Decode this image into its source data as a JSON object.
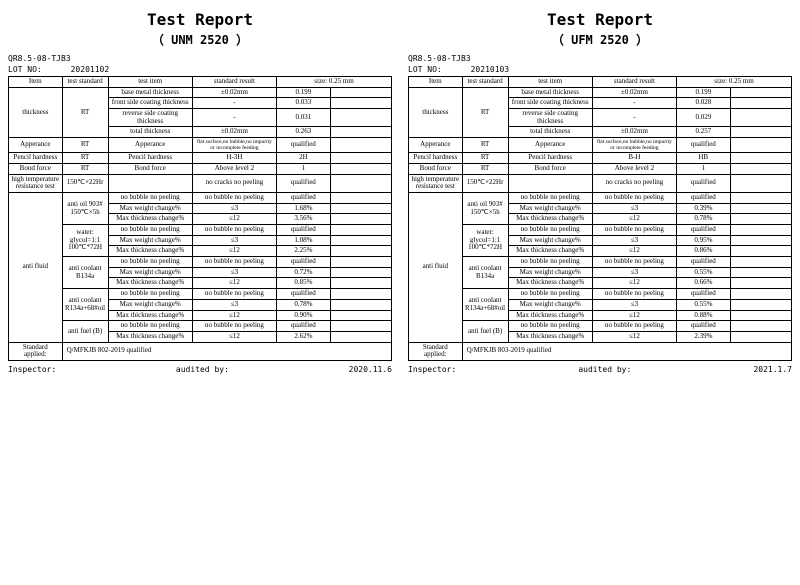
{
  "reports": [
    {
      "title": "Test Report",
      "subtitle": "（ UNM 2520 ）",
      "doc_no": "QR8.5-08-TJB3",
      "lot_label": "LOT NO:",
      "lot_no": "20201102",
      "head": {
        "item": "Item",
        "std": "test standard",
        "titem": "test item",
        "sres": "standard result",
        "size": "size: 0.25 mm"
      },
      "thickness": {
        "label": "thickness",
        "std": "RT",
        "rows": [
          {
            "ti": "base metal thickness",
            "sr": "±0.02mm",
            "v": "0.199"
          },
          {
            "ti": "front side coating thickness",
            "sr": "-",
            "v": "0.033"
          },
          {
            "ti": "reverse side coating thickness",
            "sr": "-",
            "v": "0.031"
          },
          {
            "ti": "total thickness",
            "sr": "±0.02mm",
            "v": "0.263"
          }
        ]
      },
      "appearance": {
        "label": "Apperance",
        "std": "RT",
        "ti": "Apperance",
        "sr": "flat surface,no bubble,no impurity or incomplete feeding",
        "v": "qualified"
      },
      "pencil": {
        "label": "Pencil hardness",
        "std": "RT",
        "ti": "Pencil hardness",
        "sr": "H-3H",
        "v": "2H"
      },
      "bond": {
        "label": "Bond force",
        "std": "RT",
        "ti": "Bond force",
        "sr": "Above level 2",
        "v": "1"
      },
      "hightemp": {
        "label": "high temperature resistance test",
        "std": "150℃×22Hr",
        "sr": "no cracks  no peeling",
        "v": "qualified"
      },
      "antifluid": {
        "label": "anti fluid",
        "groups": [
          {
            "std": "anti oil 903# 150℃×5h",
            "rows": [
              {
                "ti": "no bubble  no peeling",
                "sr": "no bubble  no peeling",
                "v": "qualified"
              },
              {
                "ti": "Max weight change%",
                "sr": "≤3",
                "v": "1.68%"
              },
              {
                "ti": "Max thickness change%",
                "sr": "≤12",
                "v": "3.56%"
              }
            ]
          },
          {
            "std": "water: glycol=1:1 100℃*72H",
            "rows": [
              {
                "ti": "no bubble  no peeling",
                "sr": "no bubble  no peeling",
                "v": "qualified"
              },
              {
                "ti": "Max weight change%",
                "sr": "≤3",
                "v": "1.08%"
              },
              {
                "ti": "Max thickness change%",
                "sr": "≤12",
                "v": "2.25%"
              }
            ]
          },
          {
            "std": "anti coolant R134a",
            "rows": [
              {
                "ti": "no bubble  no peeling",
                "sr": "no bubble  no peeling",
                "v": "qualified"
              },
              {
                "ti": "Max weight change%",
                "sr": "≤3",
                "v": "0.72%"
              },
              {
                "ti": "Max thickness change%",
                "sr": "≤12",
                "v": "0.85%"
              }
            ]
          },
          {
            "std": "anti coolant R134a+68#oil",
            "rows": [
              {
                "ti": "no bubble  no peeling",
                "sr": "no bubble  no peeling",
                "v": "qualified"
              },
              {
                "ti": "Max weight change%",
                "sr": "≤3",
                "v": "0.78%"
              },
              {
                "ti": "Max thickness change%",
                "sr": "≤12",
                "v": "0.90%"
              }
            ]
          },
          {
            "std": "anti fuel (B)",
            "rows": [
              {
                "ti": "no bubble  no peeling",
                "sr": "no bubble  no peeling",
                "v": "qualified"
              },
              {
                "ti": "Max thickness change%",
                "sr": "≤12",
                "v": "2.62%"
              }
            ]
          }
        ]
      },
      "std_applied": {
        "label": "Standard applied:",
        "v": "Q/MFKJB 802-2019  qualified"
      },
      "footer": {
        "inspector": "Inspector:",
        "audited": "audited by:",
        "date": "2020.11.6"
      }
    },
    {
      "title": "Test Report",
      "subtitle": "（ UFM 2520 ）",
      "doc_no": "QR8.5-08-TJB3",
      "lot_label": "LOT NO:",
      "lot_no": "20210103",
      "head": {
        "item": "Item",
        "std": "test standard",
        "titem": "test item",
        "sres": "standard result",
        "size": "size: 0.25 mm"
      },
      "thickness": {
        "label": "thickness",
        "std": "RT",
        "rows": [
          {
            "ti": "base metal thickness",
            "sr": "±0.02mm",
            "v": "0.199"
          },
          {
            "ti": "front side coating thickness",
            "sr": "-",
            "v": "0.028"
          },
          {
            "ti": "reverse side coating thickness",
            "sr": "-",
            "v": "0.029"
          },
          {
            "ti": "total thickness",
            "sr": "±0.02mm",
            "v": "0.257"
          }
        ]
      },
      "appearance": {
        "label": "Apperance",
        "std": "RT",
        "ti": "Apperance",
        "sr": "flat surface,no bubble,no impurity or incomplete feeding",
        "v": "qualified"
      },
      "pencil": {
        "label": "Pencil hardness",
        "std": "RT",
        "ti": "Pencil hardness",
        "sr": "B-H",
        "v": "HB"
      },
      "bond": {
        "label": "Bond force",
        "std": "RT",
        "ti": "Bond force",
        "sr": "Above level 2",
        "v": "1"
      },
      "hightemp": {
        "label": "high temperature resistance test",
        "std": "150℃×22Hr",
        "sr": "no cracks  no peeling",
        "v": "qualified"
      },
      "antifluid": {
        "label": "anti fluid",
        "groups": [
          {
            "std": "anti oil 903# 150℃×5h",
            "rows": [
              {
                "ti": "no bubble  no peeling",
                "sr": "no bubble  no peeling",
                "v": "qualified"
              },
              {
                "ti": "Max weight change%",
                "sr": "≤3",
                "v": "0.39%"
              },
              {
                "ti": "Max thickness change%",
                "sr": "≤12",
                "v": "0.78%"
              }
            ]
          },
          {
            "std": "water: glycol=1:1 100℃*72H",
            "rows": [
              {
                "ti": "no bubble  no peeling",
                "sr": "no bubble  no peeling",
                "v": "qualified"
              },
              {
                "ti": "Max weight change%",
                "sr": "≤3",
                "v": "0.95%"
              },
              {
                "ti": "Max thickness change%",
                "sr": "≤12",
                "v": "0.86%"
              }
            ]
          },
          {
            "std": "anti coolant R134a",
            "rows": [
              {
                "ti": "no bubble  no peeling",
                "sr": "no bubble  no peeling",
                "v": "qualified"
              },
              {
                "ti": "Max weight change%",
                "sr": "≤3",
                "v": "0.55%"
              },
              {
                "ti": "Max thickness change%",
                "sr": "≤12",
                "v": "0.66%"
              }
            ]
          },
          {
            "std": "anti coolant R134a+68#oil",
            "rows": [
              {
                "ti": "no bubble  no peeling",
                "sr": "no bubble  no peeling",
                "v": "qualified"
              },
              {
                "ti": "Max weight change%",
                "sr": "≤3",
                "v": "0.55%"
              },
              {
                "ti": "Max thickness change%",
                "sr": "≤12",
                "v": "0.88%"
              }
            ]
          },
          {
            "std": "anti fuel (B)",
            "rows": [
              {
                "ti": "no bubble  no peeling",
                "sr": "no bubble  no peeling",
                "v": "qualified"
              },
              {
                "ti": "Max thickness change%",
                "sr": "≤12",
                "v": "2.39%"
              }
            ]
          }
        ]
      },
      "std_applied": {
        "label": "Standard applied:",
        "v": "Q/MFKJB 803-2019  qualified"
      },
      "footer": {
        "inspector": "Inspector:",
        "audited": "audited by:",
        "date": "2021.1.7"
      }
    }
  ]
}
